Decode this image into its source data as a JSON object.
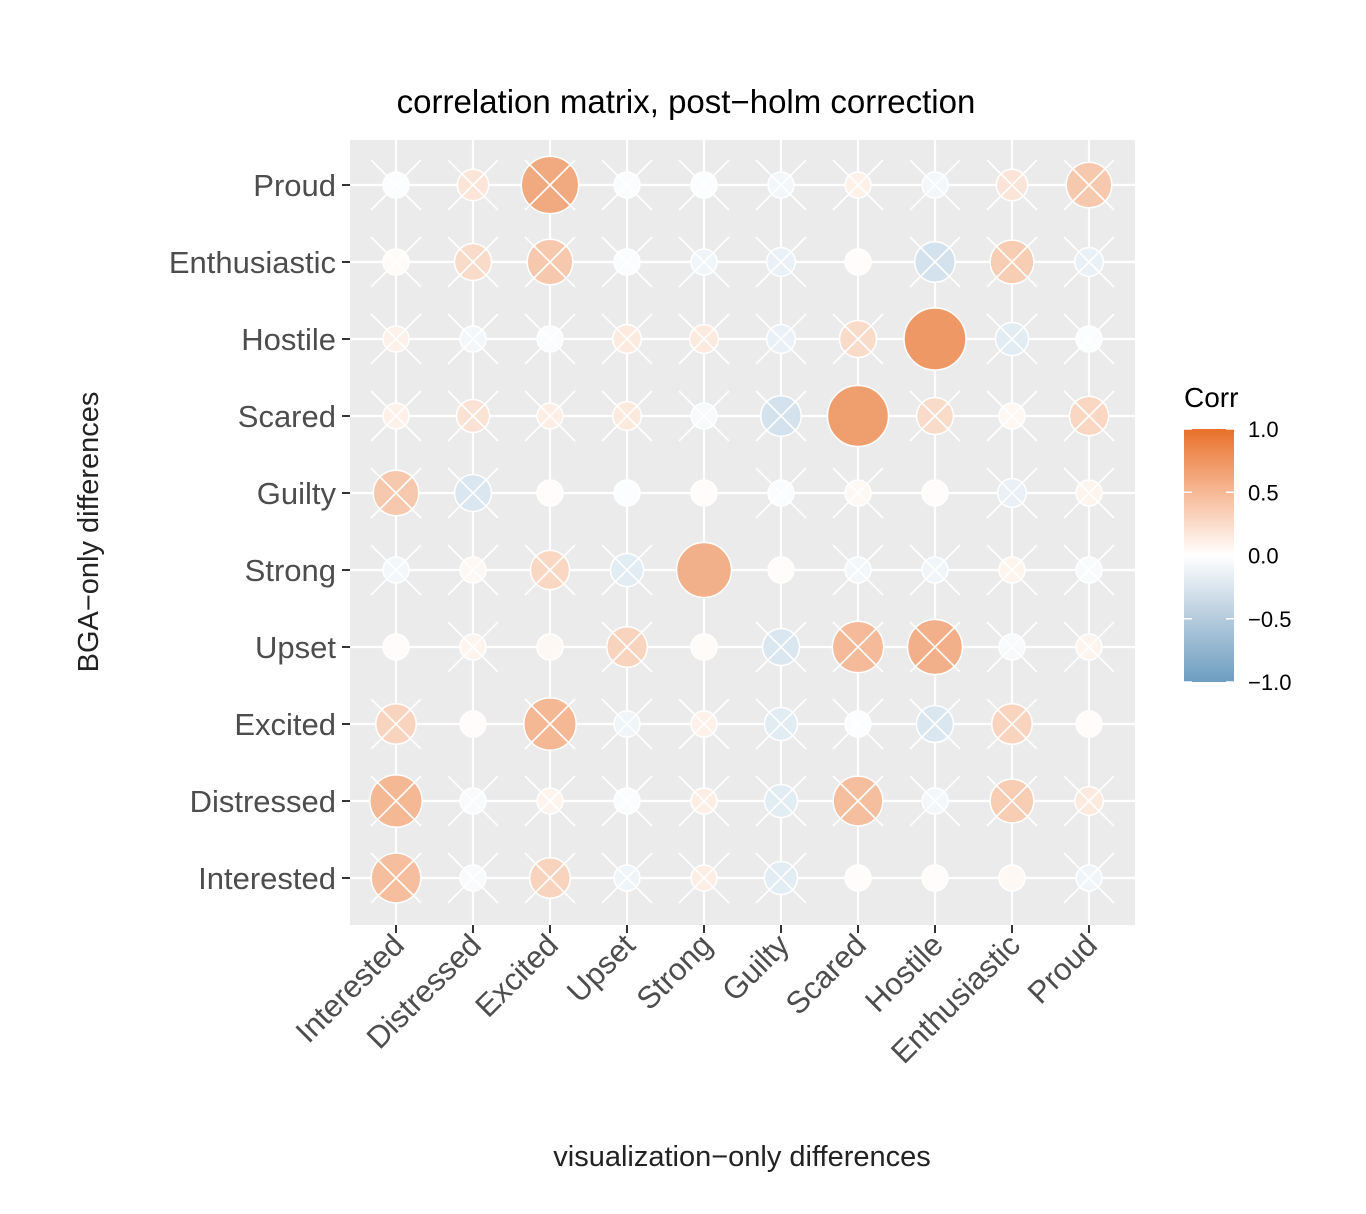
{
  "colors": {
    "panel_bg": "#EBEBEB",
    "grid": "#FFFFFF",
    "high": "#E8702A",
    "mid": "#FFFFFF",
    "low": "#6D9EC1"
  },
  "chart_data": {
    "type": "heatmap",
    "title": "correlation matrix, post−holm correction",
    "xlabel": "visualization−only differences",
    "ylabel": "BGA−only differences",
    "x_categories": [
      "Interested",
      "Distressed",
      "Excited",
      "Upset",
      "Strong",
      "Guilty",
      "Scared",
      "Hostile",
      "Enthusiastic",
      "Proud"
    ],
    "y_categories": [
      "Interested",
      "Distressed",
      "Excited",
      "Upset",
      "Strong",
      "Guilty",
      "Scared",
      "Hostile",
      "Enthusiastic",
      "Proud"
    ],
    "values": [
      [
        0.45,
        -0.05,
        0.3,
        -0.1,
        0.12,
        -0.2,
        0.02,
        0.02,
        0.05,
        -0.1
      ],
      [
        0.5,
        -0.05,
        0.08,
        -0.03,
        0.12,
        -0.2,
        0.45,
        -0.08,
        0.35,
        0.15
      ],
      [
        0.3,
        0.02,
        0.5,
        -0.1,
        0.1,
        -0.2,
        -0.02,
        -0.25,
        0.3,
        0.02
      ],
      [
        0.02,
        0.08,
        0.05,
        0.3,
        0.03,
        -0.25,
        0.48,
        0.55,
        -0.05,
        0.08
      ],
      [
        -0.08,
        0.05,
        0.28,
        -0.2,
        0.55,
        0.02,
        -0.08,
        -0.1,
        0.08,
        -0.05
      ],
      [
        0.38,
        -0.25,
        0.02,
        -0.02,
        0.02,
        -0.03,
        0.05,
        0.02,
        -0.15,
        0.08
      ],
      [
        0.1,
        0.2,
        0.12,
        0.15,
        -0.05,
        -0.3,
        0.68,
        0.25,
        0.05,
        0.28
      ],
      [
        0.1,
        -0.08,
        -0.03,
        0.15,
        0.15,
        -0.15,
        0.25,
        0.72,
        -0.2,
        -0.02
      ],
      [
        0.03,
        0.25,
        0.38,
        -0.03,
        -0.1,
        -0.15,
        0.02,
        -0.3,
        0.35,
        -0.15
      ],
      [
        -0.02,
        0.18,
        0.6,
        -0.03,
        -0.02,
        -0.08,
        0.1,
        -0.08,
        0.18,
        0.38
      ]
    ],
    "significant": [
      [
        false,
        false,
        false,
        false,
        false,
        false,
        true,
        true,
        true,
        false
      ],
      [
        false,
        false,
        false,
        false,
        false,
        false,
        false,
        false,
        false,
        false
      ],
      [
        false,
        true,
        false,
        false,
        false,
        false,
        false,
        false,
        false,
        true
      ],
      [
        true,
        false,
        true,
        false,
        true,
        false,
        false,
        false,
        false,
        false
      ],
      [
        false,
        false,
        false,
        false,
        true,
        true,
        false,
        false,
        false,
        false
      ],
      [
        false,
        false,
        true,
        true,
        true,
        false,
        false,
        true,
        false,
        false
      ],
      [
        false,
        false,
        false,
        false,
        false,
        false,
        true,
        false,
        false,
        false
      ],
      [
        false,
        false,
        false,
        false,
        false,
        false,
        false,
        true,
        false,
        false
      ],
      [
        false,
        false,
        false,
        false,
        false,
        false,
        true,
        false,
        false,
        false
      ],
      [
        false,
        false,
        false,
        false,
        false,
        false,
        false,
        false,
        false,
        false
      ]
    ],
    "legend": {
      "title": "Corr",
      "ticks": [
        "1.0",
        "0.5",
        "0.0",
        "−0.5",
        "−1.0"
      ],
      "range": [
        -1,
        1
      ],
      "placement": "right"
    }
  }
}
